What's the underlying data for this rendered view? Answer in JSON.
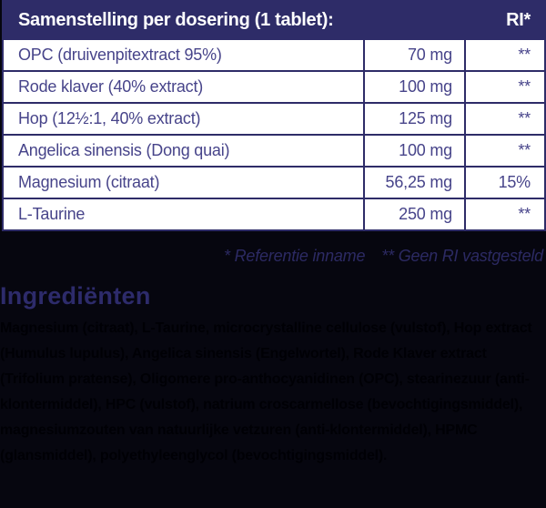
{
  "table": {
    "header": {
      "title": "Samenstelling per dosering (1 tablet):",
      "ri_label": "RI*"
    },
    "rows": [
      {
        "name": "OPC (druivenpitextract 95%)",
        "amount": "70 mg",
        "ri": "**"
      },
      {
        "name": "Rode klaver (40% extract)",
        "amount": "100 mg",
        "ri": "**"
      },
      {
        "name": "Hop (12½:1, 40% extract)",
        "amount": "125 mg",
        "ri": "**"
      },
      {
        "name": "Angelica sinensis (Dong quai)",
        "amount": "100 mg",
        "ri": "**"
      },
      {
        "name": "Magnesium (citraat)",
        "amount": "56,25 mg",
        "ri": "15%"
      },
      {
        "name": "L-Taurine",
        "amount": "250 mg",
        "ri": "**"
      }
    ]
  },
  "footnotes": {
    "reference_note": "* Referentie inname",
    "no_ri_note": "** Geen RI vastgesteld"
  },
  "ingredients": {
    "heading": "Ingrediënten",
    "text": "Magnesium (citraat), L-Taurine, microcrystalline cellulose (vulstof), Hop extract (Humulus lupulus), Angelica sinensis (Engelwortel), Rode Klaver extract (Trifolium pratense), Oligomere pro-anthocyanidinen (OPC), stearinezuur (anti-klontermiddel), HPC (vulstof), natrium croscarmellose (bevochtigingsmiddel), magnesiumzouten van natuurlijke vetzuren (anti-klontermiddel), HPMC (glansmiddel), polyethyleenglycol (bevochtigingsmiddel)."
  },
  "colors": {
    "navy_brand": "#2e2c68",
    "row_text": "#47448a",
    "header_text": "#ffffff",
    "footnote_text": "#2c2a63",
    "heading_text": "#2d2b6b",
    "section_background": "#06060f",
    "row_background": "#ffffff",
    "ingredients_text": "#000005"
  }
}
